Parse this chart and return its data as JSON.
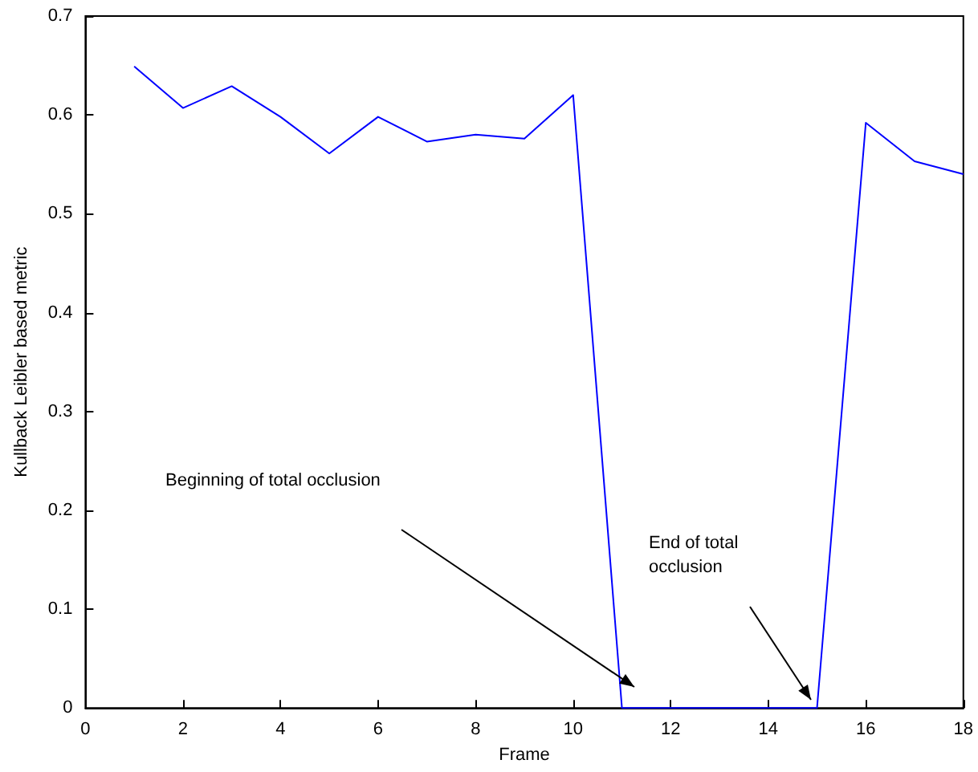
{
  "chart_data": {
    "type": "line",
    "xlabel": "Frame",
    "ylabel": "Kullback Leibler based metric",
    "x": [
      1,
      2,
      3,
      4,
      5,
      6,
      7,
      8,
      9,
      10,
      11,
      12,
      13,
      14,
      15,
      16,
      17,
      18
    ],
    "series": [
      {
        "color": "#0000ff",
        "values": [
          0.649,
          0.607,
          0.629,
          0.598,
          0.561,
          0.598,
          0.573,
          0.58,
          0.576,
          0.62,
          0,
          0,
          0,
          0,
          0,
          0.592,
          0.553,
          0.54
        ]
      }
    ],
    "xlim": [
      0,
      18
    ],
    "xticks": [
      0,
      2,
      4,
      6,
      8,
      10,
      12,
      14,
      16,
      18
    ],
    "ylim": [
      0,
      0.7
    ],
    "yticks": [
      0,
      0.1,
      0.2,
      0.3,
      0.4,
      0.5,
      0.6,
      0.7
    ],
    "grid": false,
    "marker": "none",
    "line_style": "solid",
    "annotations": [
      "Beginning of total occlusion",
      "End of total occlusion"
    ]
  }
}
